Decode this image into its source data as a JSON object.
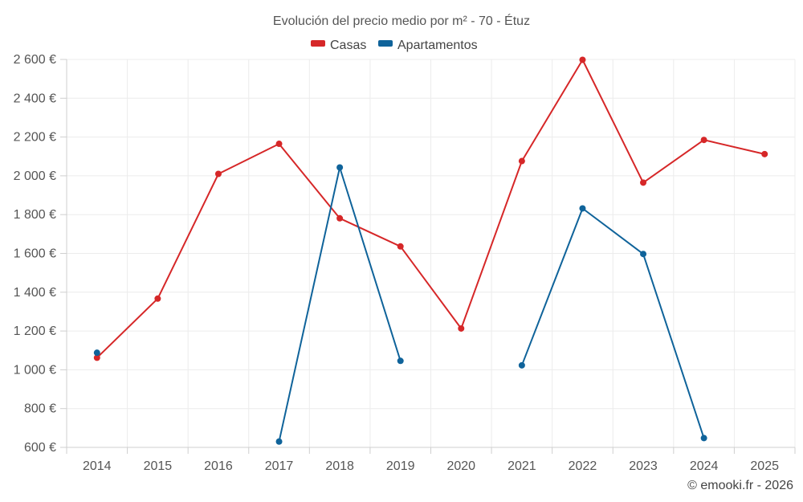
{
  "chart_data": {
    "type": "line",
    "title": "Evolución del precio medio por m² - 70 - Étuz",
    "categories": [
      "2014",
      "2015",
      "2016",
      "2017",
      "2018",
      "2019",
      "2020",
      "2021",
      "2022",
      "2023",
      "2024",
      "2025"
    ],
    "ylim": [
      600,
      2600
    ],
    "yticks": [
      600,
      800,
      1000,
      1200,
      1400,
      1600,
      1800,
      2000,
      2200,
      2400,
      2600
    ],
    "ytick_labels": [
      "600 €",
      "800 €",
      "1 000 €",
      "1 200 €",
      "1 400 €",
      "1 600 €",
      "1 800 €",
      "2 000 €",
      "2 200 €",
      "2 400 €",
      "2 600 €"
    ],
    "series": [
      {
        "name": "Casas",
        "color": "#d62728",
        "values": [
          1062,
          1367,
          2010,
          2165,
          1781,
          1636,
          1213,
          2076,
          2598,
          1965,
          2185,
          2112
        ]
      },
      {
        "name": "Apartamentos",
        "color": "#0f639a",
        "values": [
          1088,
          null,
          null,
          630,
          2043,
          1046,
          null,
          1023,
          1832,
          1597,
          648,
          null
        ]
      }
    ],
    "credit": "© emooki.fr - 2026"
  }
}
